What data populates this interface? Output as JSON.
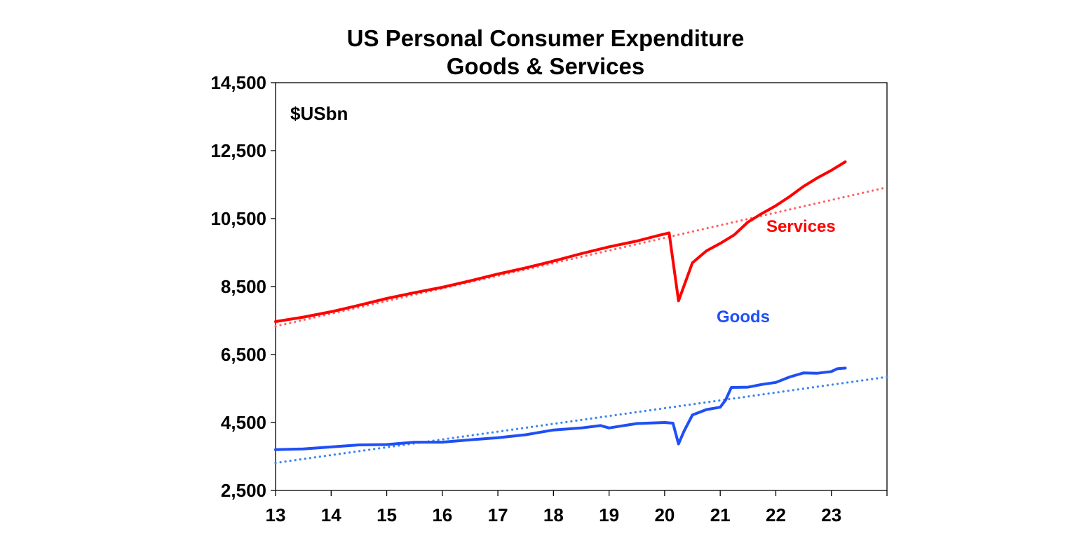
{
  "chart_data": {
    "type": "line",
    "title": "US Personal Consumer Expenditure",
    "subtitle": "Goods & Services",
    "unit_label": "$USbn",
    "xlabel": "",
    "ylabel": "",
    "xlim": [
      13,
      24
    ],
    "ylim": [
      2500,
      14500
    ],
    "x_ticks": [
      13,
      14,
      15,
      16,
      17,
      18,
      19,
      20,
      21,
      22,
      23
    ],
    "x_tick_labels": [
      "13",
      "14",
      "15",
      "16",
      "17",
      "18",
      "19",
      "20",
      "21",
      "22",
      "23"
    ],
    "y_ticks": [
      2500,
      4500,
      6500,
      8500,
      10500,
      12500,
      14500
    ],
    "y_tick_labels": [
      "2,500",
      "4,500",
      "6,500",
      "8,500",
      "10,500",
      "12,500",
      "14,500"
    ],
    "grid": false,
    "legend": "inline labels",
    "series": [
      {
        "name": "Services",
        "label": "Services",
        "color": "#ff0000",
        "x": [
          13.0,
          13.5,
          14.0,
          14.5,
          15.0,
          15.5,
          16.0,
          16.5,
          17.0,
          17.5,
          18.0,
          18.5,
          19.0,
          19.5,
          19.9,
          20.08,
          20.25,
          20.5,
          20.75,
          21.0,
          21.25,
          21.5,
          21.75,
          22.0,
          22.25,
          22.5,
          22.75,
          23.0,
          23.25
        ],
        "y": [
          7470,
          7600,
          7760,
          7950,
          8150,
          8320,
          8480,
          8670,
          8870,
          9050,
          9250,
          9470,
          9670,
          9840,
          10010,
          10080,
          8080,
          9200,
          9550,
          9770,
          10020,
          10400,
          10650,
          10880,
          11150,
          11450,
          11700,
          11920,
          12170
        ]
      },
      {
        "name": "Goods",
        "label": "Goods",
        "color": "#1f4ff5",
        "x": [
          13.0,
          13.5,
          14.0,
          14.5,
          15.0,
          15.5,
          16.0,
          16.5,
          17.0,
          17.5,
          18.0,
          18.5,
          18.85,
          19.0,
          19.5,
          20.0,
          20.15,
          20.25,
          20.35,
          20.5,
          20.75,
          21.0,
          21.1,
          21.2,
          21.5,
          21.75,
          22.0,
          22.25,
          22.5,
          22.75,
          23.0,
          23.1,
          23.25
        ],
        "y": [
          3700,
          3720,
          3780,
          3840,
          3850,
          3920,
          3920,
          3990,
          4050,
          4140,
          4280,
          4340,
          4410,
          4340,
          4470,
          4500,
          4480,
          3870,
          4250,
          4720,
          4880,
          4950,
          5170,
          5530,
          5540,
          5620,
          5680,
          5840,
          5960,
          5950,
          6000,
          6080,
          6100
        ]
      },
      {
        "name": "Services trend",
        "color": "#ff6060",
        "dotted": true,
        "x": [
          13,
          24
        ],
        "y": [
          7330,
          11420
        ]
      },
      {
        "name": "Goods trend",
        "color": "#3a86ee",
        "dotted": true,
        "x": [
          13,
          24
        ],
        "y": [
          3310,
          5840
        ]
      }
    ],
    "annotations": [
      "Services",
      "Goods"
    ]
  }
}
